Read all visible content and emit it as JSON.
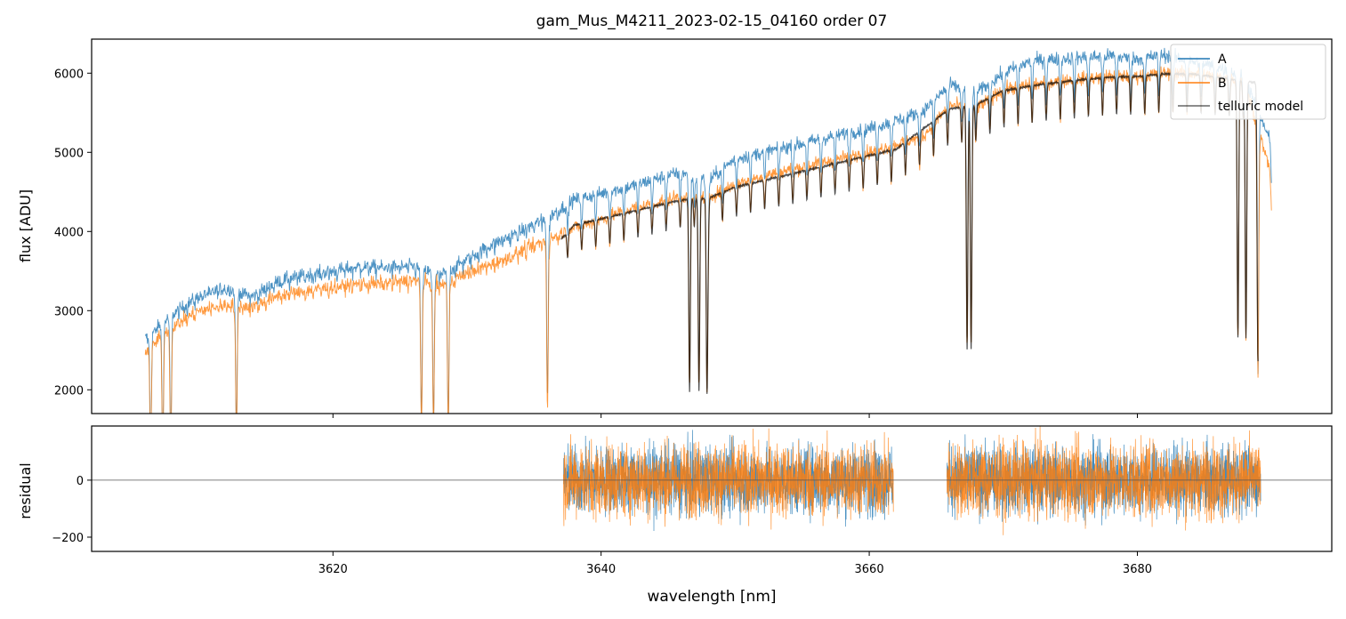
{
  "title": "gam_Mus_M4211_2023-02-15_04160  order 07",
  "colors": {
    "A": "#1f77b4",
    "B": "#ff7f0e",
    "telluric": "#000000",
    "zero_line": "#555555"
  },
  "chart_data": [
    {
      "type": "line",
      "panel": "top",
      "ylabel": "flux [ADU]",
      "xlim": [
        3602,
        3694.5
      ],
      "ylim": [
        1700,
        6430
      ],
      "yticks": [
        2000,
        3000,
        4000,
        5000,
        6000
      ],
      "yticklabels": [
        "2000",
        "3000",
        "4000",
        "5000",
        "6000"
      ],
      "grid": false,
      "legend_position": "top-right",
      "legend": [
        "A",
        "B",
        "telluric model"
      ],
      "series": [
        {
          "name": "A",
          "x": [
            3606,
            3608,
            3610,
            3612,
            3614,
            3616,
            3618,
            3620,
            3622,
            3624,
            3626,
            3628,
            3630,
            3632,
            3634,
            3636,
            3638,
            3640,
            3642,
            3644,
            3646,
            3648,
            3650,
            3652,
            3654,
            3656,
            3658,
            3660,
            3662,
            3664,
            3666,
            3668,
            3670,
            3672,
            3674,
            3676,
            3678,
            3680,
            3682,
            3684,
            3686,
            3688,
            3690
          ],
          "values": [
            2650,
            2950,
            3180,
            3290,
            3180,
            3380,
            3450,
            3500,
            3560,
            3550,
            3560,
            3440,
            3650,
            3850,
            4000,
            4180,
            4400,
            4480,
            4560,
            4660,
            4750,
            4640,
            4920,
            5000,
            5070,
            5150,
            5230,
            5300,
            5400,
            5520,
            5850,
            5750,
            6000,
            6150,
            6180,
            6200,
            6220,
            6180,
            6230,
            6150,
            6080,
            5950,
            5100
          ]
        },
        {
          "name": "B",
          "x": [
            3606,
            3608,
            3610,
            3612,
            3614,
            3616,
            3618,
            3620,
            3622,
            3624,
            3626,
            3628,
            3630,
            3632,
            3634,
            3636,
            3638,
            3640,
            3642,
            3644,
            3646,
            3648,
            3650,
            3652,
            3654,
            3656,
            3658,
            3660,
            3662,
            3664,
            3666,
            3668,
            3670,
            3672,
            3674,
            3676,
            3678,
            3680,
            3682,
            3684,
            3686,
            3688,
            3690
          ],
          "values": [
            2500,
            2800,
            3000,
            3080,
            3050,
            3200,
            3250,
            3300,
            3340,
            3350,
            3390,
            3320,
            3480,
            3600,
            3750,
            3900,
            4050,
            4150,
            4280,
            4360,
            4450,
            4430,
            4600,
            4700,
            4780,
            4850,
            4930,
            5000,
            5100,
            5200,
            5600,
            5550,
            5800,
            5850,
            5900,
            5930,
            5960,
            5960,
            6000,
            6000,
            5950,
            5900,
            4700
          ]
        },
        {
          "name": "telluric model",
          "x": [
            3637,
            3638,
            3640,
            3642,
            3644,
            3646,
            3648,
            3650,
            3652,
            3654,
            3656,
            3658,
            3660,
            3662,
            3666,
            3668,
            3670,
            3672,
            3674,
            3676,
            3678,
            3680,
            3682,
            3684,
            3686,
            3688,
            3689
          ],
          "values": [
            3900,
            4080,
            4160,
            4240,
            4320,
            4400,
            4420,
            4560,
            4640,
            4720,
            4800,
            4880,
            4960,
            5040,
            5550,
            5600,
            5780,
            5840,
            5880,
            5920,
            5950,
            5960,
            5990,
            5990,
            5950,
            5900,
            5880
          ]
        }
      ]
    },
    {
      "type": "line",
      "panel": "bottom",
      "ylabel": "residual",
      "xlabel": "wavelength [nm]",
      "xlim": [
        3602,
        3694.5
      ],
      "ylim": [
        -250,
        190
      ],
      "xticks": [
        3620,
        3640,
        3660,
        3680
      ],
      "xticklabels": [
        "3620",
        "3640",
        "3660",
        "3680"
      ],
      "yticks": [
        -200,
        0
      ],
      "yticklabels": [
        "−200",
        "0"
      ],
      "grid": false,
      "reference_line_y": 0,
      "series": [
        {
          "name": "A",
          "x_ranges": [
            [
              3637.2,
              3661.8
            ],
            [
              3665.8,
              3689.2
            ]
          ],
          "residual_std": 60
        },
        {
          "name": "B",
          "x_ranges": [
            [
              3637.2,
              3661.8
            ],
            [
              3665.8,
              3689.2
            ]
          ],
          "residual_std": 65
        }
      ]
    }
  ]
}
